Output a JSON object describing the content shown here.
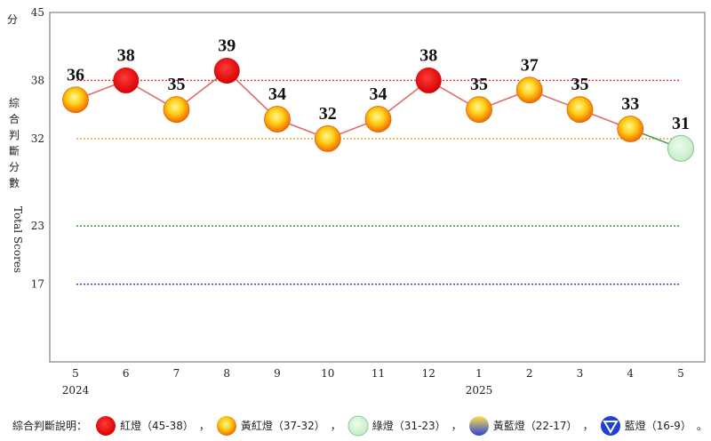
{
  "chart_data": {
    "type": "line",
    "ylabel_top": "分",
    "ylabel_zh": "綜合判斷分數",
    "ylabel_en": "Total Scores",
    "y_ticks": [
      17,
      23,
      32,
      38,
      45
    ],
    "ylim": [
      9,
      45
    ],
    "thresholds": [
      {
        "value": 38,
        "color": "#e03030"
      },
      {
        "value": 32,
        "color": "#d9a020"
      },
      {
        "value": 23,
        "color": "#2e8b2e"
      },
      {
        "value": 17,
        "color": "#3030c0"
      }
    ],
    "categories": [
      "5",
      "6",
      "7",
      "8",
      "9",
      "10",
      "11",
      "12",
      "1",
      "2",
      "3",
      "4",
      "5"
    ],
    "year_labels": [
      {
        "index": 0,
        "text": "2024"
      },
      {
        "index": 8,
        "text": "2025"
      }
    ],
    "values": [
      36,
      38,
      35,
      39,
      34,
      32,
      34,
      38,
      35,
      37,
      35,
      33,
      31
    ],
    "signals": [
      "yellow-red",
      "red",
      "yellow-red",
      "red",
      "yellow-red",
      "yellow-red",
      "yellow-red",
      "red",
      "yellow-red",
      "yellow-red",
      "yellow-red",
      "yellow-red",
      "green"
    ],
    "line_color": "#e36a6a",
    "last_segment_color": "#4a9a5a",
    "grid": false
  },
  "legend": {
    "title": "綜合判斷說明：",
    "separator": "，",
    "items": [
      {
        "key": "red",
        "label": "紅燈（45-38）"
      },
      {
        "key": "yellow-red",
        "label": "黃紅燈（37-32）"
      },
      {
        "key": "green",
        "label": "綠燈（31-23）"
      },
      {
        "key": "yellow-blue",
        "label": "黃藍燈（22-17）"
      },
      {
        "key": "blue",
        "label": "藍燈（16-9）"
      }
    ],
    "end_mark": "。"
  },
  "colors": {
    "red": "#ee0000",
    "yellow_red_outer": "#f07a00",
    "yellow_red_inner": "#ffe14a",
    "green": "#d6f5d6",
    "green_stroke": "#8fc99a",
    "blue": "#1f3fd6"
  }
}
